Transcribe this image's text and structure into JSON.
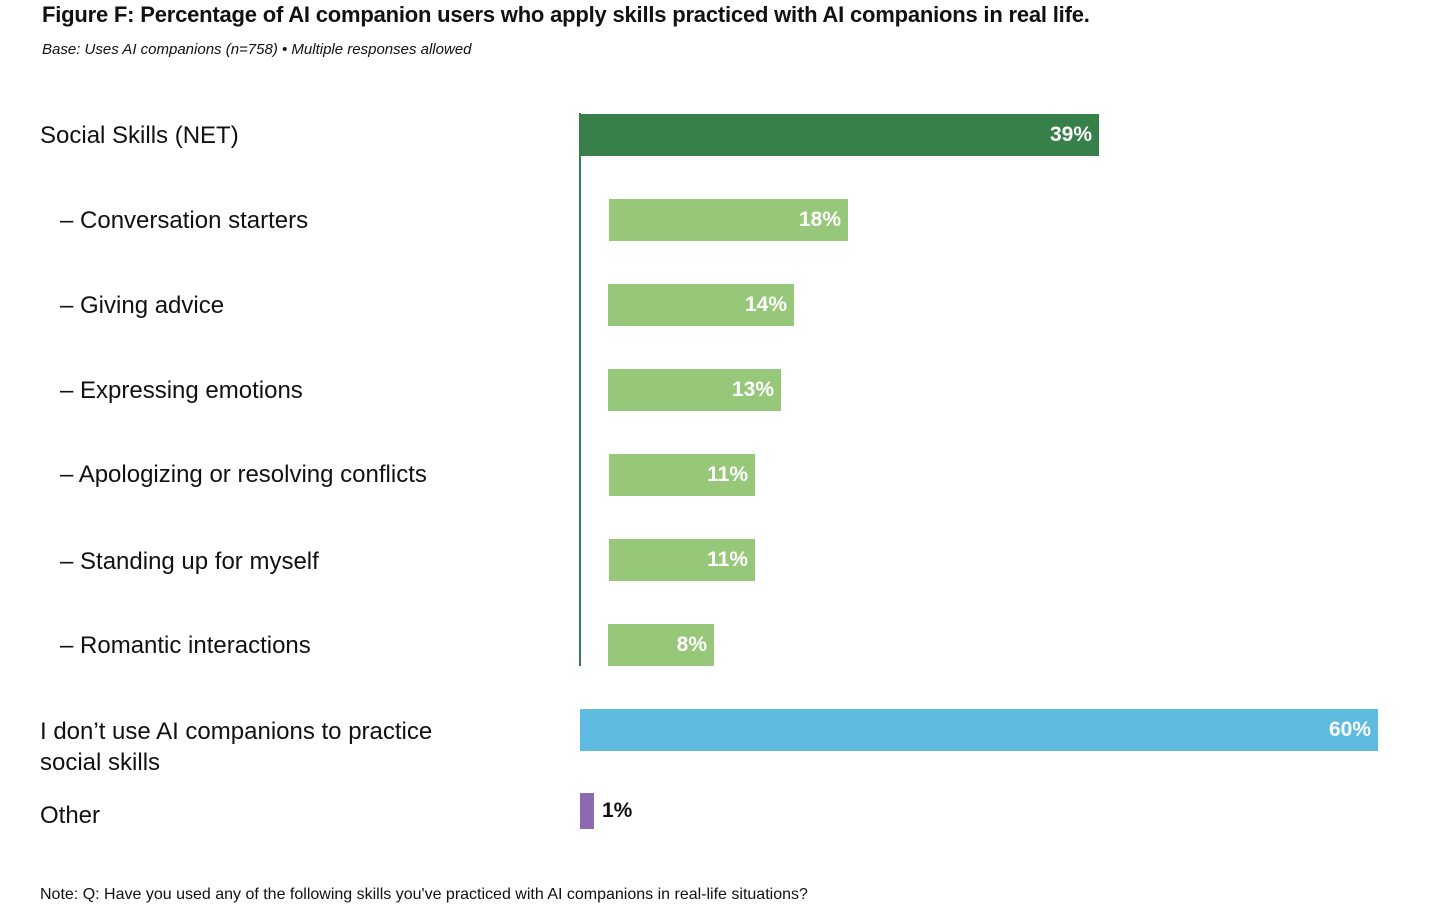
{
  "title": "Figure F: Percentage of AI companion users who apply skills practiced with AI companions in real life.",
  "subtitle": "Base: Uses AI companions (n=758) • Multiple responses allowed",
  "note": "Note: Q: Have you used any of the following skills you've practiced with AI companions in real-life situations?",
  "colors": {
    "net": "#38804a",
    "sub": "#97c87a",
    "none": "#5fbbe0",
    "other": "#8e6bb0"
  },
  "chart_data": {
    "type": "bar",
    "orientation": "horizontal",
    "title": "Figure F: Percentage of AI companion users who apply skills practiced with AI companions in real life.",
    "xlabel": "",
    "ylabel": "",
    "xlim": [
      0,
      60
    ],
    "unit": "%",
    "categories": [
      "Social Skills (NET)",
      "– Conversation starters",
      "– Giving advice",
      "– Expressing emotions",
      "– Apologizing or resolving conflicts",
      "– Standing up for myself",
      "– Romantic interactions",
      "I don’t use AI companions to practice social skills",
      "Other"
    ],
    "values": [
      39,
      18,
      14,
      13,
      11,
      11,
      8,
      60,
      1
    ],
    "value_labels": [
      "39%",
      "18%",
      "14%",
      "13%",
      "11%",
      "11%",
      "8%",
      "60%",
      "1%"
    ],
    "groups": [
      "net",
      "sub",
      "sub",
      "sub",
      "sub",
      "sub",
      "sub",
      "none",
      "other"
    ]
  }
}
